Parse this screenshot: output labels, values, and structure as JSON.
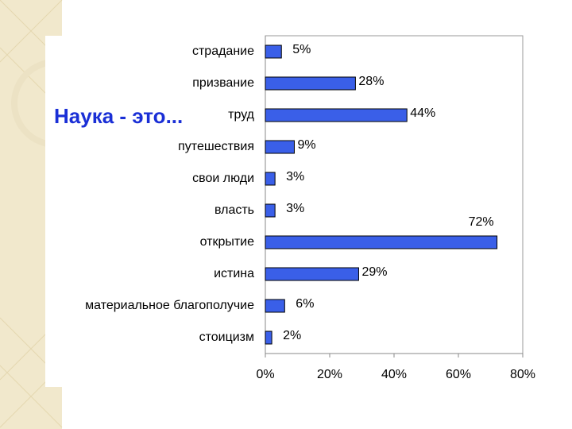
{
  "chart_data": {
    "type": "bar",
    "orientation": "horizontal",
    "title": "Наука - это...",
    "categories": [
      "страдание",
      "призвание",
      "труд",
      "путешествия",
      "свои люди",
      "власть",
      "открытие",
      "истина",
      "материальное благополучие",
      "стоицизм"
    ],
    "values": [
      5,
      28,
      44,
      9,
      3,
      3,
      72,
      29,
      6,
      2
    ],
    "value_labels": [
      "5%",
      "28%",
      "44%",
      "9%",
      "3%",
      "3%",
      "72%",
      "29%",
      "6%",
      "2%"
    ],
    "color": "#3a5fe8",
    "xlim": [
      0,
      80
    ],
    "xticks": [
      {
        "value": 0,
        "label": "0%"
      },
      {
        "value": 20,
        "label": "20%"
      },
      {
        "value": 40,
        "label": "40%"
      },
      {
        "value": 60,
        "label": "60%"
      },
      {
        "value": 80,
        "label": "80%"
      }
    ],
    "grid": false
  }
}
